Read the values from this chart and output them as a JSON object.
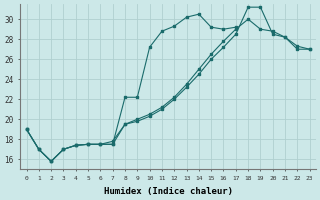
{
  "xlabel": "Humidex (Indice chaleur)",
  "xlim": [
    -0.5,
    23.5
  ],
  "ylim": [
    15.0,
    31.5
  ],
  "yticks": [
    16,
    18,
    20,
    22,
    24,
    26,
    28,
    30
  ],
  "xticks": [
    0,
    1,
    2,
    3,
    4,
    5,
    6,
    7,
    8,
    9,
    10,
    11,
    12,
    13,
    14,
    15,
    16,
    17,
    18,
    19,
    20,
    21,
    22,
    23
  ],
  "bg_color": "#cce8e8",
  "line_color": "#1a6b6b",
  "grid_color": "#b0d0d0",
  "line1_x": [
    0,
    1,
    2,
    3,
    4,
    5,
    6,
    7,
    8,
    9,
    10,
    11,
    12,
    13,
    14,
    15,
    16,
    17
  ],
  "line1_y": [
    19.0,
    17.0,
    15.8,
    17.0,
    17.4,
    17.5,
    17.5,
    17.5,
    22.2,
    22.2,
    27.2,
    28.8,
    29.3,
    30.2,
    30.5,
    29.2,
    29.0,
    29.2
  ],
  "line2_x": [
    0,
    1,
    2,
    3,
    4,
    5,
    6,
    7,
    8,
    9,
    10,
    11,
    12,
    13,
    14,
    15,
    16,
    17,
    18,
    19,
    20,
    21,
    22,
    23
  ],
  "line2_y": [
    19.0,
    17.0,
    15.8,
    17.0,
    17.4,
    17.5,
    17.5,
    17.5,
    19.5,
    19.8,
    20.3,
    21.0,
    22.0,
    23.2,
    24.5,
    26.0,
    27.2,
    28.5,
    31.2,
    31.2,
    28.5,
    28.2,
    27.3,
    27.0
  ],
  "line3_x": [
    0,
    1,
    2,
    3,
    4,
    5,
    6,
    7,
    8,
    9,
    10,
    11,
    12,
    13,
    14,
    15,
    16,
    17,
    18,
    19,
    20,
    21,
    22,
    23
  ],
  "line3_y": [
    19.0,
    17.0,
    15.8,
    17.0,
    17.4,
    17.5,
    17.5,
    17.8,
    19.5,
    20.0,
    20.5,
    21.2,
    22.2,
    23.5,
    25.0,
    26.5,
    27.8,
    29.0,
    30.0,
    29.0,
    28.8,
    28.2,
    27.0,
    27.0
  ]
}
